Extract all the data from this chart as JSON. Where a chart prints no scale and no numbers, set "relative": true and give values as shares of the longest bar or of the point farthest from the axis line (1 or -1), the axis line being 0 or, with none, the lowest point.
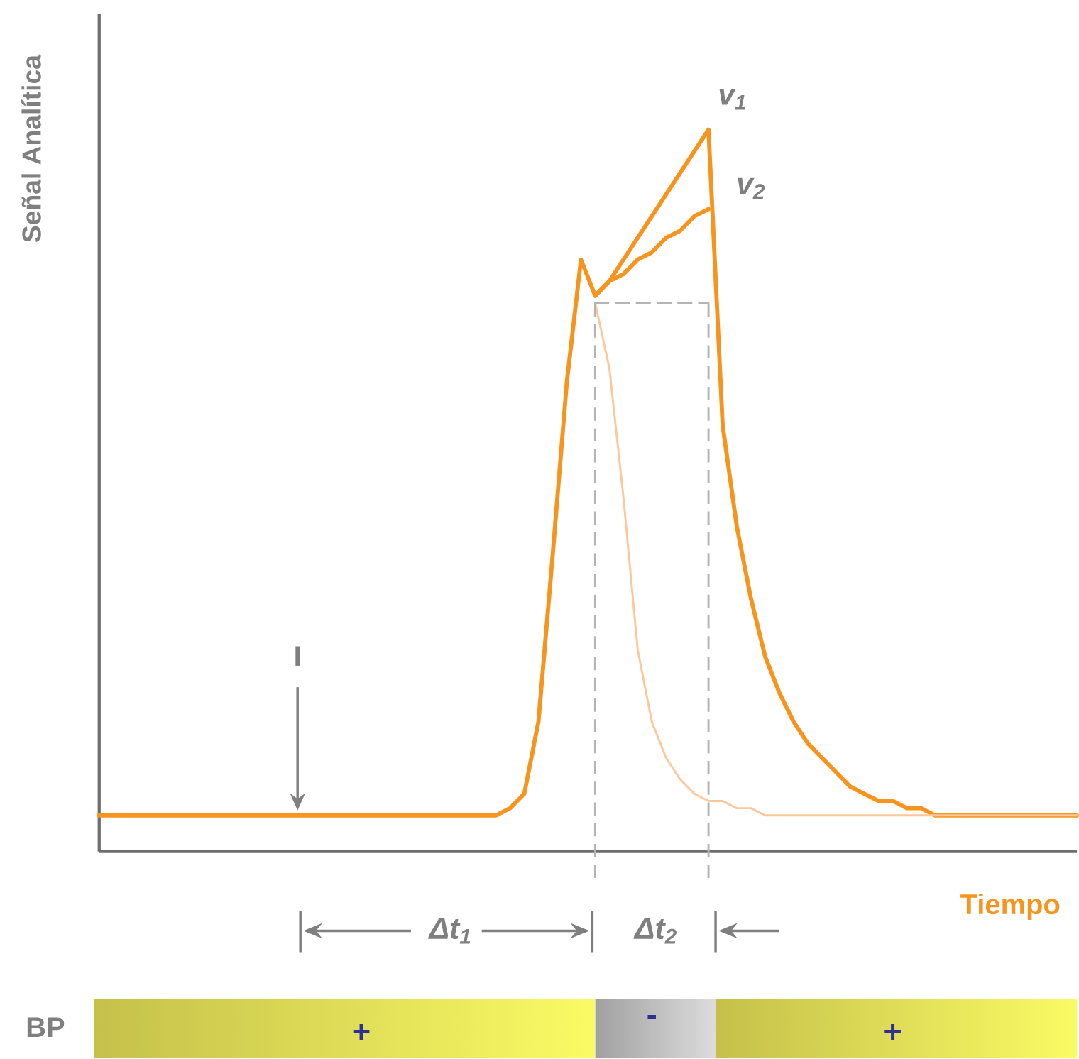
{
  "chart_data": {
    "type": "line",
    "relative": true,
    "marker": "none",
    "categories": [
      null,
      null,
      null,
      null,
      null,
      null,
      null,
      null,
      null,
      null,
      null,
      null,
      null,
      null,
      null,
      null,
      null,
      null,
      null,
      null,
      null,
      null,
      null,
      null,
      null,
      null,
      null,
      null,
      null,
      null,
      null,
      null,
      null,
      null,
      null,
      null,
      null,
      null,
      null,
      null,
      null,
      null,
      null,
      null,
      null,
      null,
      null,
      null,
      null,
      null,
      null,
      null,
      null,
      null,
      null,
      null,
      null,
      null,
      null,
      null,
      null,
      null,
      null,
      null,
      null,
      null,
      null,
      null,
      null,
      null
    ],
    "series": [
      {
        "color": "#f7941d",
        "values": [
          0.05,
          0.05,
          0.05,
          0.05,
          0.05,
          0.05,
          0.05,
          0.05,
          0.05,
          0.05,
          0.05,
          0.05,
          0.05,
          0.05,
          0.05,
          0.05,
          0.05,
          0.05,
          0.05,
          0.05,
          0.05,
          0.05,
          0.05,
          0.05,
          0.05,
          0.05,
          0.05,
          0.05,
          0.05,
          0.06,
          0.08,
          0.18,
          0.41,
          0.65,
          0.82,
          0.77,
          0.79,
          0.82,
          0.85,
          0.88,
          0.91,
          0.94,
          0.97,
          1.0,
          0.59,
          0.45,
          0.35,
          0.27,
          0.22,
          0.18,
          0.15,
          0.13,
          0.11,
          0.09,
          0.08,
          0.07,
          0.07,
          0.06,
          0.06,
          0.05,
          0.05,
          0.05,
          0.05,
          0.05,
          0.05,
          0.05,
          0.05,
          0.05,
          0.05,
          0.05
        ]
      },
      {
        "color": "#f7941d",
        "values": [
          null,
          null,
          null,
          null,
          null,
          null,
          null,
          null,
          null,
          null,
          null,
          null,
          null,
          null,
          null,
          null,
          null,
          null,
          null,
          null,
          null,
          null,
          null,
          null,
          null,
          null,
          null,
          null,
          null,
          null,
          null,
          null,
          null,
          null,
          null,
          0.77,
          0.79,
          0.8,
          0.82,
          0.83,
          0.85,
          0.86,
          0.88,
          0.89,
          null,
          null,
          null,
          null,
          null,
          null,
          null,
          null,
          null,
          null,
          null,
          null,
          null,
          null,
          null,
          null,
          null,
          null,
          null,
          null,
          null,
          null,
          null,
          null,
          null,
          null
        ]
      },
      {
        "color": "#fcc89b",
        "values": [
          null,
          null,
          null,
          null,
          null,
          null,
          null,
          null,
          null,
          null,
          null,
          null,
          null,
          null,
          null,
          null,
          null,
          null,
          null,
          null,
          null,
          null,
          null,
          null,
          null,
          null,
          null,
          null,
          null,
          null,
          null,
          null,
          null,
          null,
          null,
          0.76,
          0.67,
          0.49,
          0.28,
          0.18,
          0.13,
          0.1,
          0.08,
          0.07,
          0.07,
          0.06,
          0.06,
          0.05,
          0.05,
          0.05,
          0.05,
          0.05,
          0.05,
          0.05,
          0.05,
          0.05,
          0.05,
          0.05,
          0.05,
          0.05,
          0.05,
          0.05,
          0.05,
          0.05,
          0.05,
          0.05,
          0.05,
          0.05,
          0.05,
          0.05
        ]
      },
      {
        "color": "#b4b4b4",
        "line_style": "dashed",
        "values": [
          null,
          null,
          null,
          null,
          null,
          null,
          null,
          null,
          null,
          null,
          null,
          null,
          null,
          null,
          null,
          null,
          null,
          null,
          null,
          null,
          null,
          null,
          null,
          null,
          null,
          null,
          null,
          null,
          null,
          null,
          null,
          null,
          null,
          null,
          null,
          0.76,
          0.76,
          0.76,
          0.76,
          0.76,
          0.76,
          0.76,
          0.76,
          0.76,
          null,
          null,
          null,
          null,
          null,
          null,
          null,
          null,
          null,
          null,
          null,
          null,
          null,
          null,
          null,
          null,
          null,
          null,
          null,
          null,
          null,
          null,
          null,
          null,
          null,
          null
        ]
      }
    ],
    "annotations": [
      "I",
      "v$_{1}$",
      "v$_{2}$",
      "Δt$_{1}$",
      "Δt$_{2}$",
      "BP",
      "+",
      "-",
      "+",
      "Señal Analítica",
      "Tiempo"
    ]
  }
}
